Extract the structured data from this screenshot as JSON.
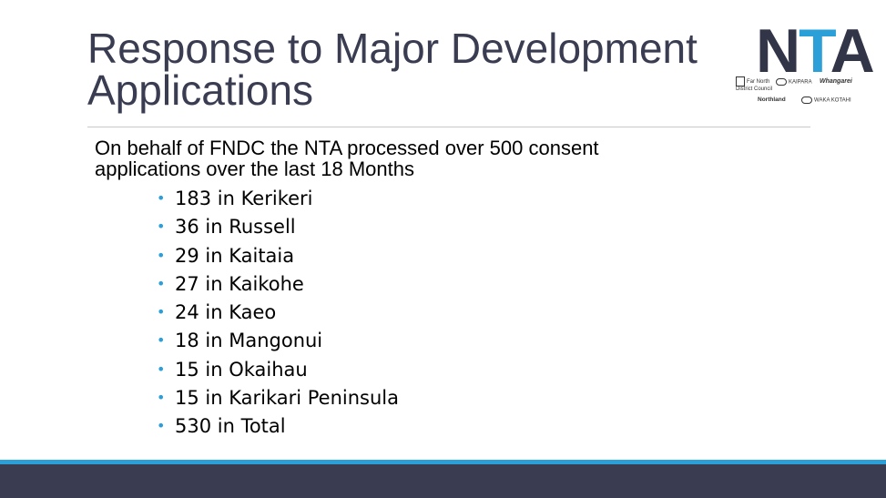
{
  "slide": {
    "title_line1": "Response to Major Development",
    "title_line2": "Applications",
    "intro_line1": "On behalf of FNDC the NTA processed over 500 consent",
    "intro_line2": "applications over the last 18 Months",
    "items": [
      "183 in Kerikeri",
      "36 in Russell",
      "29 in Kaitaia",
      "27 in Kaikohe",
      "24 in Kaeo",
      "18 in Mangonui",
      "15 in Okaihau",
      "15 in Karikari Peninsula",
      "530 in Total"
    ]
  },
  "logo": {
    "letters_n": "N",
    "letters_t": "T",
    "letters_a": "A",
    "partner_fndc": "Far North District Council",
    "partner_kaipara": "KAIPARA",
    "partner_whangarei": "Whangarei",
    "partner_northland": "Northland",
    "partner_waka": "WAKA KOTAHI"
  },
  "colors": {
    "title": "#3a3c52",
    "accent": "#2a9fd8",
    "footer": "#3a3c52"
  }
}
